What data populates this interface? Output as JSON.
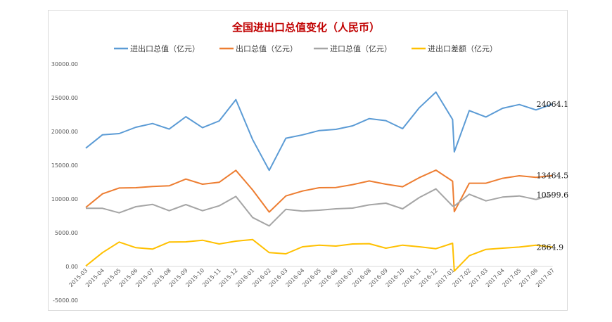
{
  "chart_data": {
    "type": "line",
    "title": "全国进出口总值变化（人民币）",
    "xlabel": "",
    "ylabel": "",
    "ylim": [
      -5000,
      30000
    ],
    "yticks": [
      "30000.00",
      "25000.00",
      "20000.00",
      "15000.00",
      "10000.00",
      "5000.00",
      "0.00",
      "-5000.00"
    ],
    "ytick_values": [
      30000,
      25000,
      20000,
      15000,
      10000,
      5000,
      0,
      -5000
    ],
    "categories": [
      "2015-03",
      "2015-04",
      "2015-05",
      "2015-06",
      "2015-07",
      "2015-08",
      "2015-09",
      "2015-10",
      "2015-11",
      "2015-12",
      "2016-01",
      "2016-02",
      "2016-03",
      "2016-04",
      "2016-05",
      "2016-06",
      "2016-07",
      "2016-08",
      "2016-09",
      "2016-10",
      "2016-11",
      "2016-12",
      "2017-01",
      "2017-02",
      "2017-03",
      "2017-04",
      "2017-05",
      "2017-06",
      "2017-07"
    ],
    "x": [
      0,
      1,
      2,
      3,
      4,
      5,
      6,
      7,
      8,
      9,
      10,
      11,
      12,
      13,
      14,
      15,
      16,
      17,
      18,
      19,
      20,
      21,
      22,
      22.1,
      23,
      24,
      25,
      26,
      27,
      28
    ],
    "legend_position": "top",
    "grid": false,
    "series": [
      {
        "name": "进出口总值（亿元）",
        "color": "#5b9bd5",
        "values": [
          17530,
          19510,
          19690,
          20620,
          21180,
          20350,
          22190,
          20560,
          21560,
          24720,
          18820,
          14240,
          19000,
          19500,
          20140,
          20310,
          20830,
          21910,
          21600,
          20420,
          23510,
          25830,
          21770,
          16980,
          23090,
          22150,
          23440,
          23990,
          23200,
          24064.1
        ],
        "end_label": "24064.1"
      },
      {
        "name": "出口总值（亿元）",
        "color": "#ed7d31",
        "values": [
          8750,
          10760,
          11630,
          11670,
          11840,
          11950,
          12950,
          12190,
          12470,
          14240,
          11350,
          8060,
          10450,
          11180,
          11670,
          11700,
          12120,
          12670,
          12190,
          11810,
          13160,
          14270,
          12640,
          8120,
          12330,
          12330,
          13060,
          13440,
          13200,
          13464.5
        ],
        "end_label": "13464.5"
      },
      {
        "name": "进口总值（亿元）",
        "color": "#a5a5a5",
        "values": [
          8610,
          8610,
          7950,
          8850,
          9200,
          8260,
          9170,
          8260,
          8990,
          10380,
          7260,
          6010,
          8470,
          8200,
          8330,
          8540,
          8650,
          9130,
          9380,
          8540,
          10210,
          11490,
          8960,
          8960,
          10700,
          9720,
          10280,
          10450,
          9930,
          10599.6
        ],
        "end_label": "10599.6"
      },
      {
        "name": "进出口差额（亿元）",
        "color": "#ffc000",
        "values": [
          70,
          2050,
          3610,
          2780,
          2570,
          3610,
          3650,
          3890,
          3330,
          3750,
          3990,
          2050,
          1870,
          2920,
          3160,
          3020,
          3330,
          3370,
          2710,
          3160,
          2920,
          2640,
          3440,
          -690,
          1590,
          2530,
          2710,
          2880,
          3160,
          2864.9
        ],
        "end_label": "2864.9"
      }
    ]
  }
}
